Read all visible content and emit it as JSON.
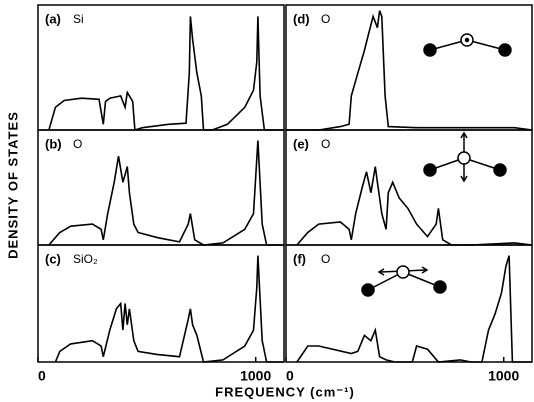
{
  "figure": {
    "xlabel": "FREQUENCY (cm⁻¹)",
    "ylabel": "DENSITY OF STATES"
  },
  "chart_data": [
    {
      "type": "line",
      "label": "(a)",
      "title": "Si",
      "color": "#000",
      "xlim": [
        0,
        1130
      ],
      "ylim": [
        0,
        1.1
      ],
      "x": [
        50,
        80,
        120,
        200,
        280,
        300,
        310,
        330,
        380,
        400,
        410,
        420,
        435,
        445,
        480,
        600,
        680,
        695,
        700,
        710,
        730,
        750,
        760,
        800,
        870,
        950,
        990,
        1005,
        1010,
        1020,
        1040,
        1130
      ],
      "values": [
        0,
        0.2,
        0.26,
        0.28,
        0.27,
        0.05,
        0.25,
        0.28,
        0.3,
        0.2,
        0.33,
        0.3,
        0.25,
        0,
        0.02,
        0.05,
        0.06,
        0.5,
        1.0,
        0.8,
        0.5,
        0.3,
        0,
        0,
        0.05,
        0.2,
        0.35,
        0.6,
        1.0,
        0.3,
        0,
        0
      ]
    },
    {
      "type": "line",
      "label": "(b)",
      "title": "O",
      "color": "#000",
      "xlim": [
        0,
        1130
      ],
      "ylim": [
        0,
        1.1
      ],
      "x": [
        50,
        100,
        150,
        250,
        290,
        300,
        320,
        350,
        370,
        390,
        410,
        420,
        440,
        460,
        550,
        650,
        690,
        700,
        720,
        760,
        850,
        950,
        990,
        1010,
        1030,
        1050,
        1130
      ],
      "values": [
        0,
        0.12,
        0.18,
        0.2,
        0.15,
        0.05,
        0.3,
        0.6,
        0.85,
        0.6,
        0.75,
        0.5,
        0.2,
        0.12,
        0.07,
        0.03,
        0.2,
        0.3,
        0.05,
        0,
        0.02,
        0.15,
        0.3,
        1.0,
        0.2,
        0,
        0
      ]
    },
    {
      "type": "line",
      "label": "(c)",
      "title": "SiO₂",
      "color": "#000",
      "xlim": [
        0,
        1130
      ],
      "ylim": [
        0,
        1.1
      ],
      "xticks": [
        0,
        1000
      ],
      "x": [
        80,
        100,
        150,
        250,
        290,
        300,
        330,
        360,
        380,
        390,
        400,
        410,
        420,
        440,
        460,
        550,
        650,
        690,
        700,
        710,
        730,
        760,
        850,
        950,
        990,
        1005,
        1010,
        1030,
        1050,
        1130
      ],
      "values": [
        0,
        0.1,
        0.17,
        0.2,
        0.15,
        0.05,
        0.3,
        0.5,
        0.55,
        0.3,
        0.55,
        0.35,
        0.5,
        0.2,
        0.1,
        0.07,
        0.05,
        0.4,
        0.5,
        0.35,
        0.25,
        0,
        0.02,
        0.15,
        0.3,
        0.7,
        1.0,
        0.2,
        0,
        0
      ]
    },
    {
      "type": "line",
      "label": "(d)",
      "title": "O",
      "color": "#000",
      "xlim": [
        0,
        1130
      ],
      "ylim": [
        0,
        1.1
      ],
      "x": [
        0,
        150,
        250,
        290,
        300,
        330,
        360,
        380,
        400,
        420,
        430,
        440,
        455,
        470,
        600,
        700,
        750,
        1050,
        1130
      ],
      "values": [
        0,
        0,
        0.03,
        0.05,
        0.3,
        0.5,
        0.7,
        0.85,
        1.0,
        0.9,
        1.05,
        1.0,
        0.3,
        0.03,
        0.02,
        0.02,
        0.02,
        0.02,
        0
      ]
    },
    {
      "type": "line",
      "label": "(e)",
      "title": "O",
      "color": "#000",
      "xlim": [
        0,
        1130
      ],
      "ylim": [
        0,
        1.1
      ],
      "x": [
        50,
        100,
        150,
        250,
        290,
        300,
        320,
        350,
        370,
        390,
        410,
        420,
        440,
        460,
        470,
        490,
        520,
        560,
        600,
        650,
        690,
        700,
        720,
        760,
        850,
        1050,
        1130
      ],
      "values": [
        0,
        0.12,
        0.2,
        0.22,
        0.15,
        0.05,
        0.3,
        0.55,
        0.7,
        0.5,
        0.75,
        0.6,
        0.3,
        0.15,
        0.5,
        0.6,
        0.45,
        0.35,
        0.2,
        0.08,
        0.2,
        0.35,
        0.05,
        0,
        0,
        0.02,
        0
      ]
    },
    {
      "type": "line",
      "label": "(f)",
      "title": "O",
      "color": "#000",
      "xlim": [
        0,
        1130
      ],
      "ylim": [
        0,
        1.1
      ],
      "xticks": [
        0,
        1000
      ],
      "x": [
        50,
        100,
        150,
        300,
        330,
        360,
        390,
        410,
        430,
        460,
        500,
        580,
        600,
        650,
        700,
        800,
        850,
        900,
        930,
        960,
        990,
        1010,
        1025,
        1040,
        1130
      ],
      "values": [
        0,
        0.15,
        0.15,
        0.08,
        0.1,
        0.25,
        0.2,
        0.3,
        0.05,
        0.02,
        0,
        0,
        0.15,
        0.12,
        0,
        0.02,
        0,
        0,
        0.3,
        0.45,
        0.65,
        0.9,
        1.0,
        0,
        0
      ]
    }
  ]
}
